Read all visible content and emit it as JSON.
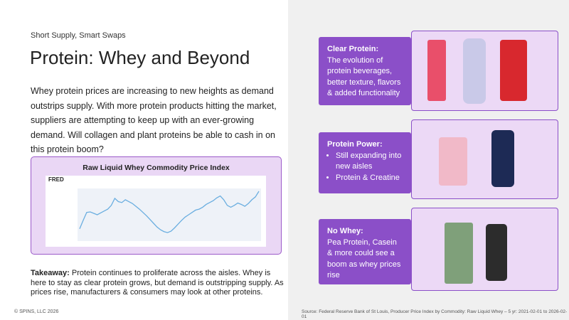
{
  "header": {
    "kicker": "Short Supply, Smart Swaps",
    "title": "Protein: Whey and Beyond"
  },
  "intro": "Whey protein prices are increasing to new heights as demand outstrips supply. With more protein products hitting the market, suppliers are attempting to keep up with an ever-growing demand. Will collagen and plant proteins be able to cash in on this protein boom?",
  "chart": {
    "title": "Raw Liquid Whey Commodity Price Index",
    "logo": "FRED",
    "type": "line",
    "color": "#6aaee0",
    "ylim": [
      0,
      100
    ],
    "values": [
      20,
      38,
      55,
      56,
      53,
      50,
      54,
      58,
      62,
      70,
      85,
      78,
      76,
      82,
      78,
      74,
      68,
      62,
      55,
      48,
      40,
      32,
      24,
      18,
      14,
      12,
      15,
      22,
      30,
      38,
      45,
      50,
      55,
      60,
      62,
      66,
      72,
      76,
      80,
      86,
      90,
      82,
      70,
      66,
      70,
      75,
      72,
      68,
      74,
      82,
      88,
      100
    ]
  },
  "takeaway": {
    "label": "Takeaway:",
    "text": " Protein continues to proliferate across the aisles. Whey is here to stay as clear protein grows, but demand is outstripping supply. As prices rise, manufacturers & consumers may look at other proteins."
  },
  "cards": [
    {
      "title": "Clear Protein:",
      "lines": [
        "The evolution of protein beverages, better texture, flavors & added functionality"
      ]
    },
    {
      "title": "Protein Power:",
      "bullets": [
        "Still expanding into new aisles",
        "Protein & Creatine"
      ]
    },
    {
      "title": "No Whey:",
      "lines": [
        "Pea Protein, Casein & more could see a boom as whey prices rise"
      ]
    }
  ],
  "footer": {
    "copyright": "© SPINS, LLC 2026",
    "source": "Source: Federal Reserve Bank of St Louis, Producer Price Index by Commodity: Raw Liquid Whey – 5 yr: 2021-02-01 to 2026-02-01"
  }
}
